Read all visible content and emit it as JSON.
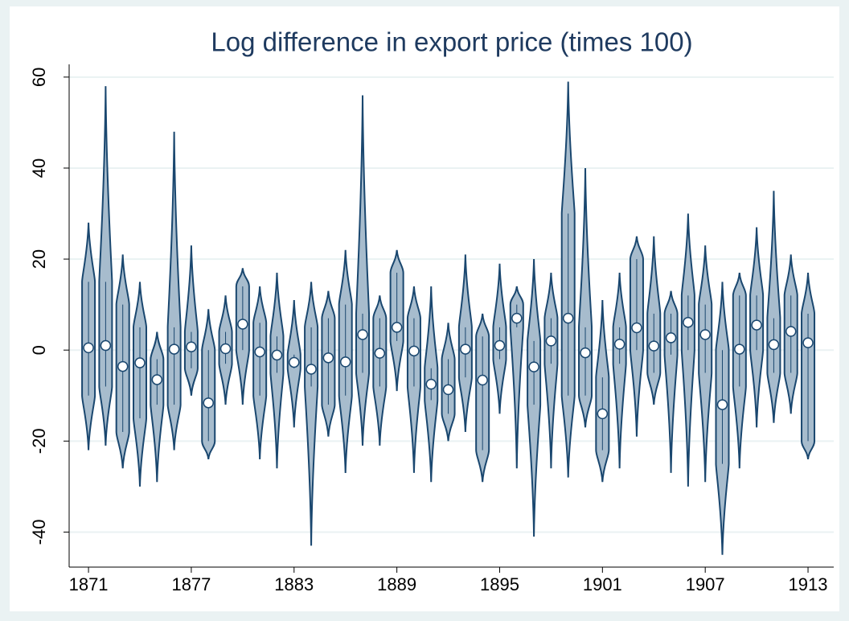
{
  "chart_data": {
    "type": "violin",
    "title": "Log difference in export price (times 100)",
    "x": [
      1871,
      1872,
      1873,
      1874,
      1875,
      1876,
      1877,
      1878,
      1879,
      1880,
      1881,
      1882,
      1883,
      1884,
      1885,
      1886,
      1887,
      1888,
      1889,
      1890,
      1891,
      1892,
      1893,
      1894,
      1895,
      1896,
      1897,
      1898,
      1899,
      1900,
      1901,
      1902,
      1903,
      1904,
      1905,
      1906,
      1907,
      1908,
      1909,
      1910,
      1911,
      1912,
      1913
    ],
    "median": [
      0.5,
      1,
      -3.6,
      -2.8,
      -6.5,
      0.2,
      0.7,
      -11.6,
      0.3,
      5.7,
      -0.4,
      -1.1,
      -2.7,
      -4.2,
      -1.7,
      -2.6,
      3.4,
      -0.7,
      5,
      -0.2,
      -7.5,
      -8.7,
      0.2,
      -6.6,
      1,
      7,
      -3.7,
      2,
      7,
      -0.6,
      -14,
      1.3,
      4.9,
      0.9,
      2.7,
      6.1,
      3.4,
      -12,
      0.2,
      5.5,
      1.2,
      4.1,
      1.6
    ],
    "min": [
      -22,
      -21,
      -26,
      -30,
      -29,
      -22,
      -10,
      -24,
      -12,
      -12,
      -24,
      -26,
      -17,
      -43,
      -19,
      -27,
      -21,
      -21,
      -9,
      -27,
      -29,
      -20,
      -18,
      -29,
      -14,
      -26,
      -41,
      -26,
      -28,
      -17,
      -29,
      -26,
      -19,
      -12,
      -27,
      -30,
      -29,
      -45,
      -26,
      -17,
      -16,
      -14,
      -24
    ],
    "q1": [
      -10,
      -8,
      -18,
      -15,
      -12,
      -12,
      -4,
      -20,
      -3,
      0,
      -10,
      -5,
      -4,
      -8,
      -12,
      -10,
      -5,
      -8,
      2,
      -8,
      -11,
      -14,
      -6,
      -22,
      -2,
      5,
      -12,
      -3,
      -10,
      -10,
      -22,
      -3,
      0,
      -5,
      -1,
      0,
      -5,
      -25,
      -8,
      0,
      -5,
      -5,
      -20
    ],
    "q3": [
      15,
      15,
      10,
      5,
      -2,
      5,
      4,
      0,
      4,
      14,
      6,
      3,
      -1,
      5,
      7,
      10,
      8,
      7,
      17,
      7,
      -4,
      -2,
      5,
      3,
      5,
      10,
      2,
      7,
      30,
      5,
      -6,
      5,
      20,
      8,
      8,
      12,
      10,
      0,
      12,
      12,
      7,
      12,
      8
    ],
    "max": [
      28,
      58,
      21,
      15,
      4,
      48,
      23,
      9,
      12,
      18,
      14,
      17,
      11,
      15,
      13,
      22,
      56,
      12,
      22,
      14,
      14,
      6,
      21,
      8,
      19,
      14,
      20,
      17,
      59,
      40,
      11,
      17,
      25,
      25,
      13,
      30,
      23,
      15,
      17,
      27,
      35,
      21,
      17
    ],
    "xlim": [
      1869.87,
      1914.5
    ],
    "xticks": [
      1871,
      1877,
      1883,
      1889,
      1895,
      1901,
      1907,
      1913
    ],
    "ylim": [
      -47.7,
      62.8
    ],
    "yticks": [
      -40,
      -20,
      0,
      20,
      40,
      60
    ],
    "grid": true,
    "color": "#a7bccd",
    "line_color": "#1a476f"
  }
}
